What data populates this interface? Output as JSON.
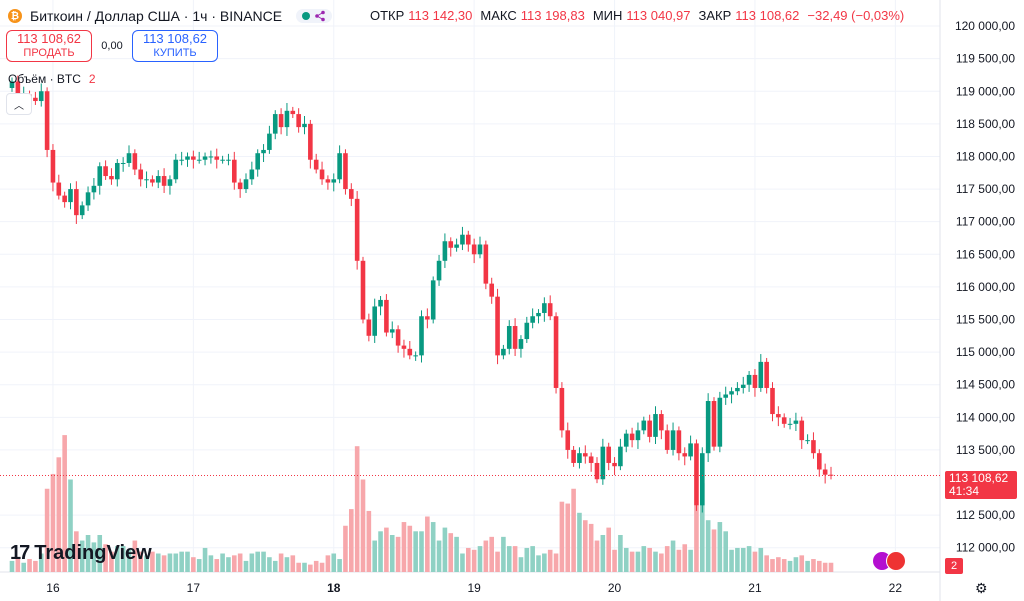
{
  "header": {
    "coin_icon": "bitcoin-icon",
    "title": "Биткоин / Доллар США · 1ч · BINANCE",
    "ohlc": [
      {
        "label": "ОТКР",
        "value": "113 142,30"
      },
      {
        "label": "МАКС",
        "value": "113 198,83"
      },
      {
        "label": "МИН",
        "value": "113 040,97"
      },
      {
        "label": "ЗАКР",
        "value": "113 108,62"
      },
      {
        "label": "",
        "value": "−32,49 (−0,03%)"
      }
    ]
  },
  "trade": {
    "sell_price": "113 108,62",
    "sell_label": "ПРОДАТЬ",
    "spread": "0,00",
    "buy_price": "113 108,62",
    "buy_label": "КУПИТЬ"
  },
  "volume_legend": {
    "label": "Объём · BTC",
    "count": "2"
  },
  "brand": "TradingView",
  "price_tag": {
    "price": "113 108,62",
    "countdown": "41:34"
  },
  "volume_tag": "2",
  "colors": {
    "up": "#089981",
    "down": "#f23645",
    "up_vol": "#8fd1c4",
    "down_vol": "#f7a7ab",
    "grid": "#f0f3fa"
  },
  "chart_data": {
    "type": "candlestick",
    "x_ticks": [
      {
        "label": "16",
        "index": 7,
        "bold": false
      },
      {
        "label": "17",
        "index": 31,
        "bold": false
      },
      {
        "label": "18",
        "index": 55,
        "bold": true
      },
      {
        "label": "19",
        "index": 79,
        "bold": false
      },
      {
        "label": "20",
        "index": 103,
        "bold": false
      },
      {
        "label": "21",
        "index": 127,
        "bold": false
      },
      {
        "label": "22",
        "index": 151,
        "bold": false
      }
    ],
    "y_ticks": [
      {
        "label": "120 000,00",
        "value": 120000
      },
      {
        "label": "119 500,00",
        "value": 119500
      },
      {
        "label": "119 000,00",
        "value": 119000
      },
      {
        "label": "118 500,00",
        "value": 118500
      },
      {
        "label": "118 000,00",
        "value": 118000
      },
      {
        "label": "117 500,00",
        "value": 117500
      },
      {
        "label": "117 000,00",
        "value": 117000
      },
      {
        "label": "116 500,00",
        "value": 116500
      },
      {
        "label": "116 000,00",
        "value": 116000
      },
      {
        "label": "115 500,00",
        "value": 115500
      },
      {
        "label": "115 000,00",
        "value": 115000
      },
      {
        "label": "114 500,00",
        "value": 114500
      },
      {
        "label": "114 000,00",
        "value": 114000
      },
      {
        "label": "113 500,00",
        "value": 113500
      },
      {
        "label": "112 500,00",
        "value": 112500
      },
      {
        "label": "112 000,00",
        "value": 112000
      }
    ],
    "y_range": [
      111950,
      120200
    ],
    "last_price": 113108.62,
    "closes": [
      119150,
      118900,
      118950,
      118900,
      118850,
      119000,
      118100,
      117600,
      117400,
      117300,
      117500,
      117100,
      117250,
      117450,
      117550,
      117850,
      117700,
      117650,
      117900,
      117900,
      118050,
      117800,
      117650,
      117650,
      117600,
      117700,
      117550,
      117650,
      117950,
      117950,
      118000,
      117950,
      117950,
      118000,
      118000,
      117950,
      117950,
      117950,
      117600,
      117500,
      117650,
      117800,
      118050,
      118100,
      118350,
      118650,
      118450,
      118700,
      118650,
      118450,
      118500,
      117950,
      117800,
      117650,
      117600,
      117650,
      118050,
      117500,
      117350,
      116400,
      115500,
      115250,
      115700,
      115800,
      115300,
      115350,
      115100,
      115050,
      114950,
      114950,
      115550,
      115500,
      116100,
      116400,
      116700,
      116600,
      116650,
      116800,
      116650,
      116500,
      116650,
      116050,
      115850,
      114950,
      115050,
      115400,
      115050,
      115200,
      115450,
      115550,
      115600,
      115750,
      115550,
      114450,
      113800,
      113500,
      113300,
      113450,
      113400,
      113300,
      113050,
      113550,
      113300,
      113250,
      113550,
      113750,
      113650,
      113800,
      113950,
      113700,
      114050,
      113800,
      113500,
      113800,
      113450,
      113400,
      113600,
      112650,
      113450,
      114250,
      113550,
      114300,
      114350,
      114400,
      114450,
      114500,
      114650,
      114450,
      114850,
      114450,
      114050,
      114000,
      113900,
      113900,
      113950,
      113650,
      113650,
      113450,
      113200,
      113120,
      113108
    ],
    "volumes": [
      0.06,
      0.08,
      0.05,
      0.07,
      0.06,
      0.1,
      0.45,
      0.53,
      0.62,
      0.74,
      0.5,
      0.22,
      0.17,
      0.2,
      0.16,
      0.2,
      0.15,
      0.11,
      0.14,
      0.14,
      0.12,
      0.17,
      0.11,
      0.09,
      0.11,
      0.1,
      0.09,
      0.1,
      0.1,
      0.11,
      0.11,
      0.08,
      0.07,
      0.13,
      0.09,
      0.07,
      0.1,
      0.08,
      0.09,
      0.1,
      0.06,
      0.1,
      0.11,
      0.11,
      0.08,
      0.06,
      0.1,
      0.08,
      0.09,
      0.05,
      0.05,
      0.04,
      0.06,
      0.05,
      0.09,
      0.1,
      0.07,
      0.25,
      0.34,
      0.68,
      0.5,
      0.33,
      0.17,
      0.22,
      0.24,
      0.2,
      0.19,
      0.27,
      0.25,
      0.22,
      0.22,
      0.3,
      0.27,
      0.17,
      0.24,
      0.21,
      0.19,
      0.1,
      0.13,
      0.12,
      0.14,
      0.17,
      0.19,
      0.11,
      0.19,
      0.14,
      0.14,
      0.08,
      0.13,
      0.14,
      0.09,
      0.1,
      0.12,
      0.1,
      0.38,
      0.37,
      0.45,
      0.32,
      0.28,
      0.26,
      0.17,
      0.2,
      0.24,
      0.12,
      0.2,
      0.13,
      0.11,
      0.11,
      0.14,
      0.13,
      0.11,
      0.1,
      0.14,
      0.17,
      0.12,
      0.15,
      0.12,
      0.36,
      0.48,
      0.28,
      0.23,
      0.27,
      0.22,
      0.12,
      0.13,
      0.13,
      0.14,
      0.11,
      0.13,
      0.09,
      0.07,
      0.08,
      0.07,
      0.06,
      0.08,
      0.09,
      0.06,
      0.07,
      0.06,
      0.05,
      0.05
    ]
  }
}
